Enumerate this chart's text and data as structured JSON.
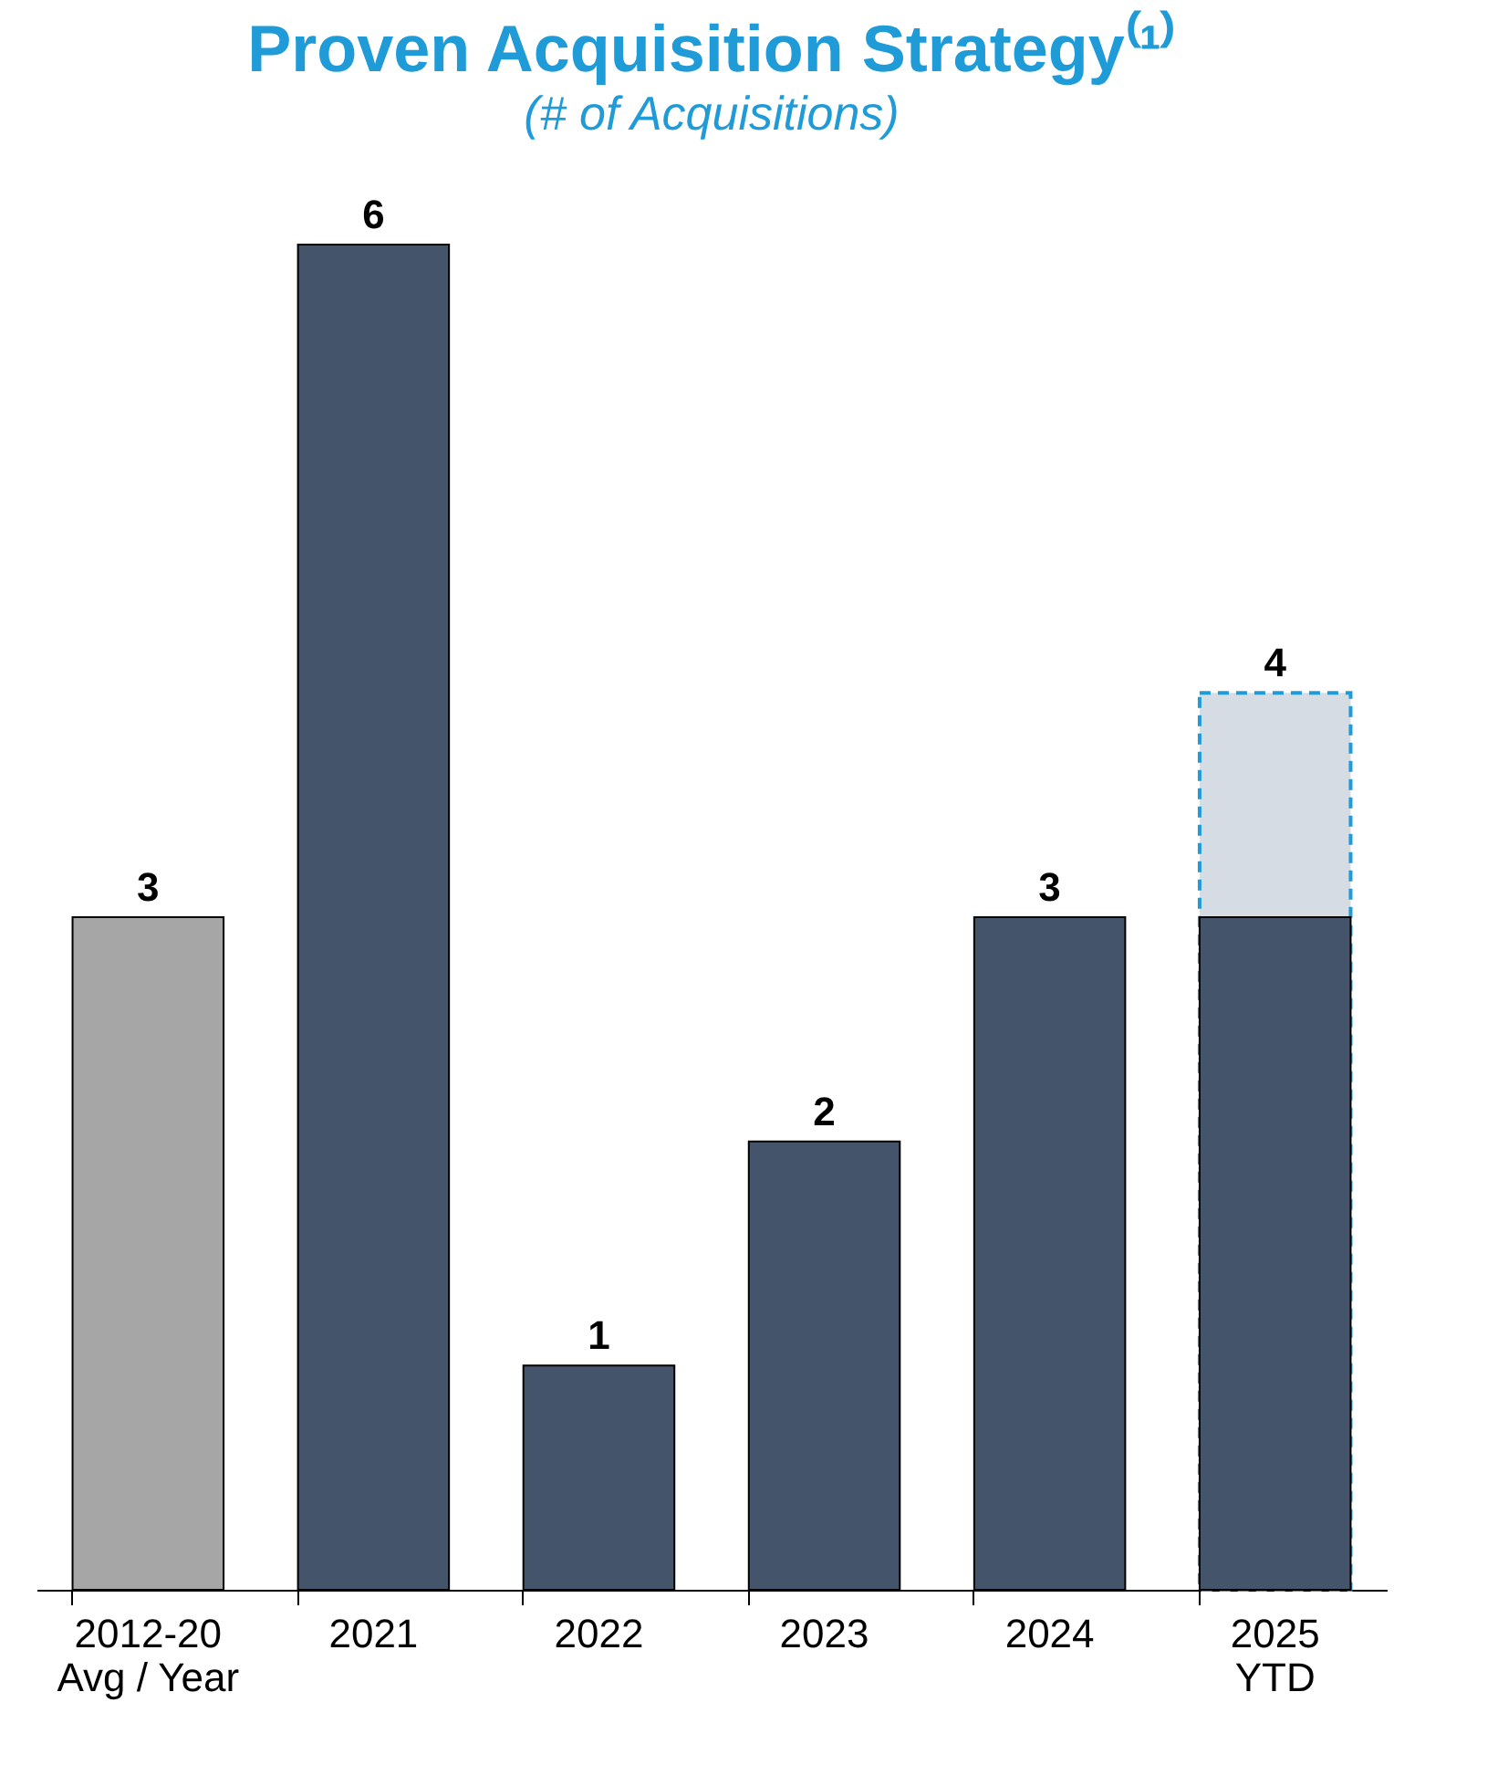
{
  "chart_data": {
    "type": "bar",
    "title": "Proven Acquisition Strategy⁽¹⁾",
    "subtitle": "(# of Acquisitions)",
    "categories": [
      "2012-20\nAvg / Year",
      "2021",
      "2022",
      "2023",
      "2024",
      "2025\nYTD"
    ],
    "series": [
      {
        "color": "#d6dce4",
        "values": [
          null,
          null,
          null,
          null,
          null,
          4
        ],
        "line_style": "dashed",
        "value_labels": [
          null,
          null,
          null,
          null,
          null,
          "4"
        ]
      },
      {
        "colors": [
          "#a6a6a6",
          "#44546a",
          "#44546a",
          "#44546a",
          "#44546a",
          "#44546a"
        ],
        "values": [
          3,
          6,
          1,
          2,
          3,
          3
        ],
        "value_labels": [
          "3",
          "6",
          "1",
          "2",
          "3",
          null
        ]
      }
    ],
    "tick_labels": "x",
    "grid": false
  }
}
